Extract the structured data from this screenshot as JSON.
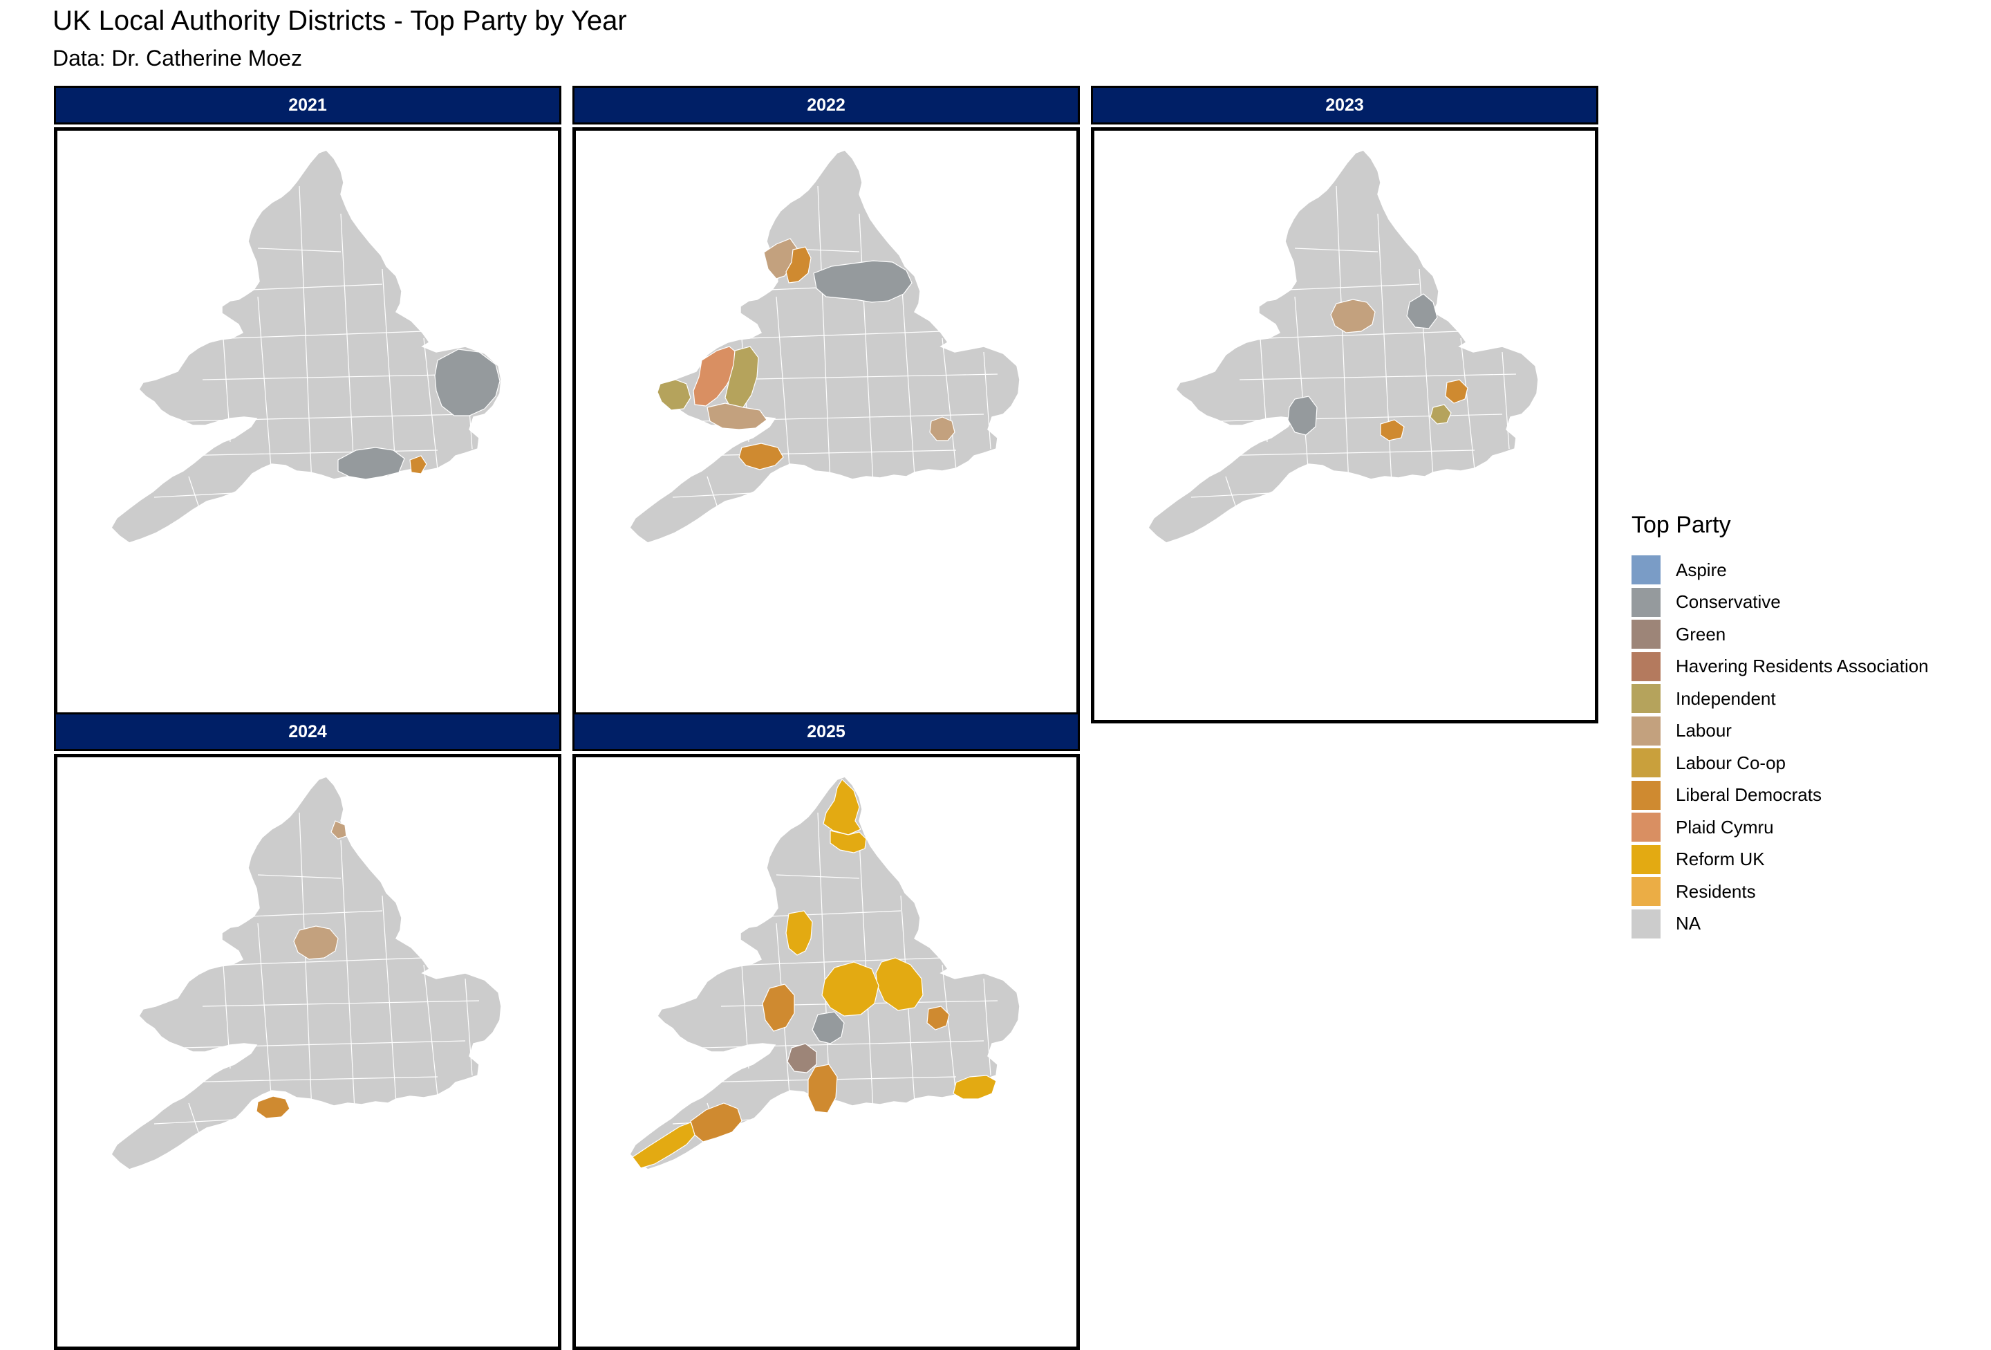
{
  "title": "UK Local Authority Districts - Top Party by Year",
  "subtitle": "Data: Dr. Catherine Moez",
  "legend": {
    "title": "Top Party",
    "items": [
      {
        "label": "Aspire",
        "color": "#7a9cc6"
      },
      {
        "label": "Conservative",
        "color": "#959a9d"
      },
      {
        "label": "Green",
        "color": "#9d8578"
      },
      {
        "label": "Havering Residents Association",
        "color": "#b47a5e"
      },
      {
        "label": "Independent",
        "color": "#b5a35c"
      },
      {
        "label": "Labour",
        "color": "#c3a17e"
      },
      {
        "label": "Labour Co-op",
        "color": "#c9a03c"
      },
      {
        "label": "Liberal Democrats",
        "color": "#cf8a30"
      },
      {
        "label": "Plaid Cymru",
        "color": "#d98f62"
      },
      {
        "label": "Reform UK",
        "color": "#e3aa12"
      },
      {
        "label": "Residents",
        "color": "#ebad45"
      },
      {
        "label": "NA",
        "color": "#cccccc"
      }
    ]
  },
  "panels": [
    {
      "year": "2021",
      "regions": [
        {
          "party": "Conservative",
          "area": "East Anglia"
        },
        {
          "party": "Conservative",
          "area": "Hampshire"
        },
        {
          "party": "Liberal Democrats",
          "area": "Sussex coast"
        }
      ]
    },
    {
      "year": "2022",
      "regions": [
        {
          "party": "Labour",
          "area": "Cumbria west"
        },
        {
          "party": "Liberal Democrats",
          "area": "Cumbria south"
        },
        {
          "party": "Conservative",
          "area": "North Yorkshire"
        },
        {
          "party": "Plaid Cymru",
          "area": "West Wales"
        },
        {
          "party": "Independent",
          "area": "Powys"
        },
        {
          "party": "Independent",
          "area": "Pembrokeshire"
        },
        {
          "party": "Labour",
          "area": "South Wales"
        },
        {
          "party": "Liberal Democrats",
          "area": "Somerset"
        },
        {
          "party": "Labour",
          "area": "London"
        }
      ]
    },
    {
      "year": "2023",
      "regions": [
        {
          "party": "Conservative",
          "area": "East Riding"
        },
        {
          "party": "Labour",
          "area": "West Yorkshire"
        },
        {
          "party": "Conservative",
          "area": "Herefordshire"
        },
        {
          "party": "Independent",
          "area": "Bedfordshire"
        },
        {
          "party": "Liberal Democrats",
          "area": "Oxfordshire"
        },
        {
          "party": "Liberal Democrats",
          "area": "Cambridgeshire"
        }
      ]
    },
    {
      "year": "2024",
      "regions": [
        {
          "party": "Labour",
          "area": "West Yorkshire"
        },
        {
          "party": "Labour",
          "area": "Tyneside"
        },
        {
          "party": "Liberal Democrats",
          "area": "Dorset"
        }
      ]
    },
    {
      "year": "2025",
      "regions": [
        {
          "party": "Reform UK",
          "area": "Northumberland"
        },
        {
          "party": "Reform UK",
          "area": "Durham"
        },
        {
          "party": "Reform UK",
          "area": "Lancashire"
        },
        {
          "party": "Reform UK",
          "area": "Lincolnshire"
        },
        {
          "party": "Reform UK",
          "area": "East Midlands"
        },
        {
          "party": "Liberal Democrats",
          "area": "Shropshire"
        },
        {
          "party": "Conservative",
          "area": "Warwickshire"
        },
        {
          "party": "Green",
          "area": "Gloucestershire"
        },
        {
          "party": "Liberal Democrats",
          "area": "Wiltshire"
        },
        {
          "party": "Reform UK",
          "area": "Cornwall"
        },
        {
          "party": "Liberal Democrats",
          "area": "Devon"
        },
        {
          "party": "Reform UK",
          "area": "Kent"
        },
        {
          "party": "Liberal Democrats",
          "area": "Cambridgeshire"
        }
      ]
    }
  ]
}
